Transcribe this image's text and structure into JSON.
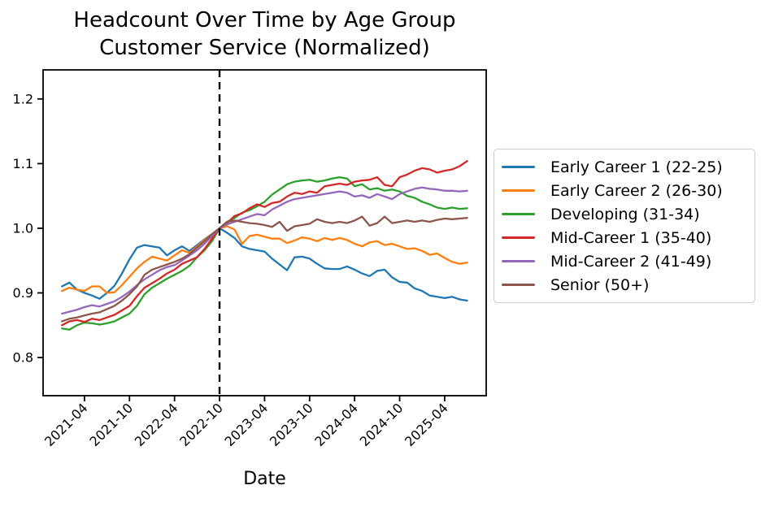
{
  "figure": {
    "background": "#ffffff",
    "text_color": "#000000"
  },
  "chart_data": {
    "type": "line",
    "title": "Headcount Over Time by Age Group",
    "subtitle": "Customer Service (Normalized)",
    "xlabel": "Date",
    "ylabel": "",
    "grid": false,
    "legend_position": "center-right-outside",
    "ylim": [
      0.741,
      1.245
    ],
    "yticks": [
      "0.8",
      "0.9",
      "1.0",
      "1.1",
      "1.2"
    ],
    "xticks": [
      "2021-04",
      "2021-10",
      "2022-04",
      "2022-10",
      "2023-04",
      "2023-10",
      "2024-04",
      "2024-10",
      "2025-04"
    ],
    "normalization_line": {
      "date": "2022-10",
      "style": "dashed",
      "color": "#000000"
    },
    "x": [
      "2021-01",
      "2021-02",
      "2021-03",
      "2021-04",
      "2021-05",
      "2021-06",
      "2021-07",
      "2021-08",
      "2021-09",
      "2021-10",
      "2021-11",
      "2021-12",
      "2022-01",
      "2022-02",
      "2022-03",
      "2022-04",
      "2022-05",
      "2022-06",
      "2022-07",
      "2022-08",
      "2022-09",
      "2022-10",
      "2022-11",
      "2022-12",
      "2023-01",
      "2023-02",
      "2023-03",
      "2023-04",
      "2023-05",
      "2023-06",
      "2023-07",
      "2023-08",
      "2023-09",
      "2023-10",
      "2023-11",
      "2023-12",
      "2024-01",
      "2024-02",
      "2024-03",
      "2024-04",
      "2024-05",
      "2024-06",
      "2024-07",
      "2024-08",
      "2024-09",
      "2024-10",
      "2024-11",
      "2024-12",
      "2025-01",
      "2025-02",
      "2025-03",
      "2025-04",
      "2025-05",
      "2025-06",
      "2025-07"
    ],
    "series": [
      {
        "name": "Early Career 1 (22-25)",
        "color": "#1f77b4",
        "values": [
          0.91,
          0.916,
          0.905,
          0.9,
          0.896,
          0.891,
          0.9,
          0.911,
          0.93,
          0.952,
          0.97,
          0.974,
          0.972,
          0.97,
          0.958,
          0.966,
          0.972,
          0.965,
          0.974,
          0.983,
          0.991,
          1.0,
          0.993,
          0.985,
          0.972,
          0.968,
          0.966,
          0.964,
          0.953,
          0.944,
          0.935,
          0.955,
          0.956,
          0.953,
          0.945,
          0.938,
          0.937,
          0.937,
          0.941,
          0.936,
          0.93,
          0.926,
          0.934,
          0.936,
          0.924,
          0.917,
          0.916,
          0.907,
          0.903,
          0.896,
          0.894,
          0.892,
          0.894,
          0.89,
          0.888
        ]
      },
      {
        "name": "Early Career 2 (26-30)",
        "color": "#ff7f0e",
        "values": [
          0.903,
          0.908,
          0.905,
          0.903,
          0.91,
          0.91,
          0.9,
          0.901,
          0.912,
          0.925,
          0.938,
          0.948,
          0.956,
          0.953,
          0.95,
          0.958,
          0.966,
          0.962,
          0.972,
          0.982,
          0.991,
          1.0,
          1.003,
          0.998,
          0.976,
          0.988,
          0.99,
          0.987,
          0.984,
          0.984,
          0.977,
          0.981,
          0.986,
          0.984,
          0.98,
          0.985,
          0.982,
          0.985,
          0.982,
          0.976,
          0.972,
          0.978,
          0.98,
          0.974,
          0.976,
          0.972,
          0.968,
          0.969,
          0.965,
          0.959,
          0.961,
          0.954,
          0.948,
          0.945,
          0.947
        ]
      },
      {
        "name": "Developing (31-34)",
        "color": "#2ca02c",
        "values": [
          0.845,
          0.843,
          0.85,
          0.854,
          0.853,
          0.851,
          0.853,
          0.856,
          0.862,
          0.868,
          0.88,
          0.898,
          0.908,
          0.915,
          0.922,
          0.928,
          0.934,
          0.942,
          0.955,
          0.966,
          0.98,
          1.0,
          1.01,
          1.016,
          1.024,
          1.028,
          1.034,
          1.041,
          1.052,
          1.06,
          1.068,
          1.072,
          1.074,
          1.075,
          1.072,
          1.074,
          1.077,
          1.079,
          1.077,
          1.065,
          1.068,
          1.06,
          1.062,
          1.058,
          1.06,
          1.057,
          1.05,
          1.047,
          1.041,
          1.037,
          1.032,
          1.03,
          1.032,
          1.03,
          1.031
        ]
      },
      {
        "name": "Mid-Career 1 (35-40)",
        "color": "#d62728",
        "values": [
          0.85,
          0.856,
          0.858,
          0.855,
          0.86,
          0.858,
          0.862,
          0.866,
          0.873,
          0.88,
          0.895,
          0.908,
          0.915,
          0.922,
          0.93,
          0.936,
          0.945,
          0.95,
          0.955,
          0.968,
          0.984,
          1.0,
          1.008,
          1.019,
          1.023,
          1.031,
          1.037,
          1.033,
          1.039,
          1.041,
          1.049,
          1.055,
          1.053,
          1.057,
          1.055,
          1.065,
          1.067,
          1.069,
          1.067,
          1.072,
          1.074,
          1.075,
          1.079,
          1.067,
          1.065,
          1.079,
          1.083,
          1.089,
          1.093,
          1.091,
          1.086,
          1.089,
          1.091,
          1.096,
          1.104
        ]
      },
      {
        "name": "Mid-Career 2 (41-49)",
        "color": "#9467bd",
        "values": [
          0.868,
          0.871,
          0.874,
          0.878,
          0.881,
          0.879,
          0.883,
          0.887,
          0.894,
          0.902,
          0.912,
          0.921,
          0.928,
          0.935,
          0.94,
          0.943,
          0.95,
          0.958,
          0.966,
          0.976,
          0.988,
          1.0,
          1.006,
          1.01,
          1.014,
          1.018,
          1.022,
          1.02,
          1.029,
          1.035,
          1.041,
          1.045,
          1.047,
          1.049,
          1.051,
          1.053,
          1.055,
          1.057,
          1.055,
          1.049,
          1.051,
          1.047,
          1.053,
          1.049,
          1.045,
          1.053,
          1.057,
          1.061,
          1.063,
          1.061,
          1.06,
          1.058,
          1.058,
          1.057,
          1.058
        ]
      },
      {
        "name": "Senior (50+)",
        "color": "#8c564b",
        "values": [
          0.856,
          0.86,
          0.862,
          0.865,
          0.868,
          0.87,
          0.875,
          0.88,
          0.888,
          0.898,
          0.91,
          0.928,
          0.936,
          0.94,
          0.944,
          0.948,
          0.953,
          0.96,
          0.97,
          0.98,
          0.991,
          1.0,
          1.01,
          1.012,
          1.01,
          1.008,
          1.007,
          1.005,
          1.002,
          1.01,
          0.996,
          1.003,
          1.005,
          1.007,
          1.014,
          1.01,
          1.008,
          1.01,
          1.008,
          1.012,
          1.018,
          1.004,
          1.008,
          1.018,
          1.008,
          1.01,
          1.012,
          1.01,
          1.012,
          1.01,
          1.013,
          1.015,
          1.014,
          1.015,
          1.016
        ]
      }
    ]
  }
}
